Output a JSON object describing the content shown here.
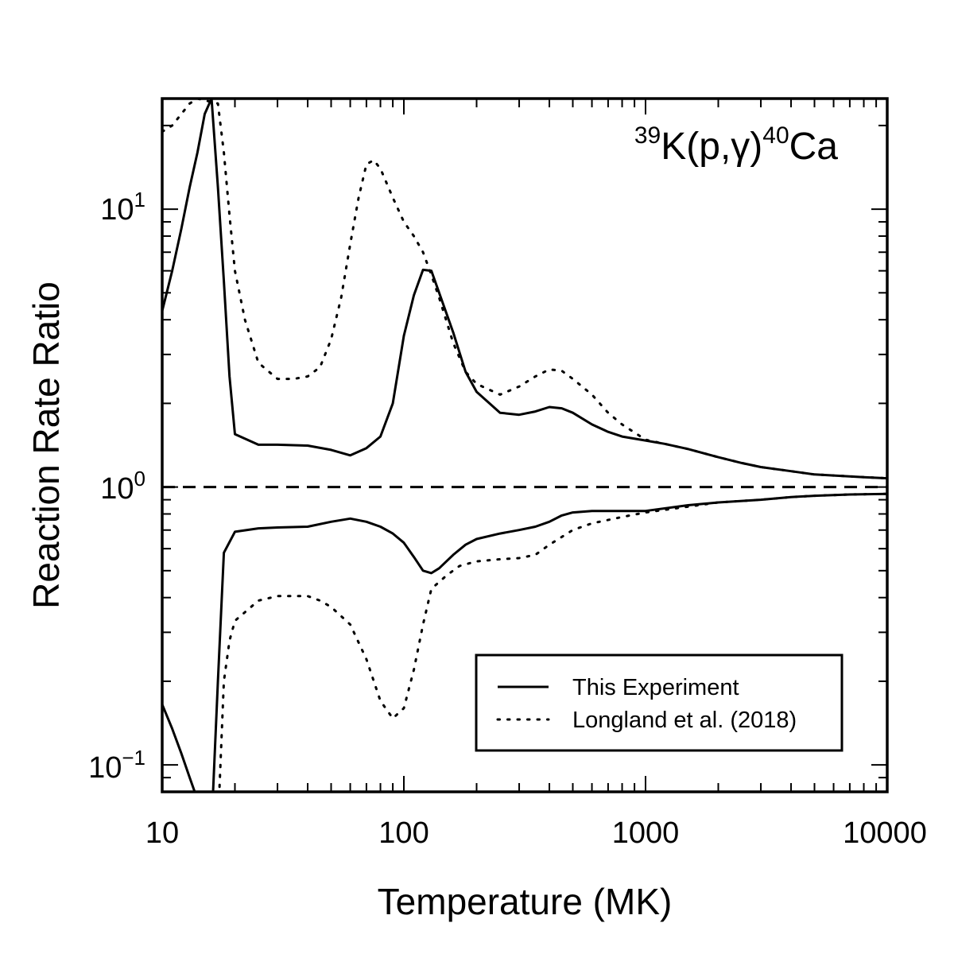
{
  "chart_data": {
    "type": "line",
    "title": "",
    "annotation": {
      "k_mass": "39",
      "k_rest": "K(p,",
      "gamma": "γ",
      "close": ")",
      "ca_mass": "40",
      "ca_rest": "Ca"
    },
    "xlabel": "Temperature (MK)",
    "ylabel": "Reaction Rate Ratio",
    "xscale": "log",
    "yscale": "log",
    "xlim": [
      10,
      10000
    ],
    "ylim": [
      0.08,
      25
    ],
    "x_tick_labels": [
      "10",
      "100",
      "1000",
      "10000"
    ],
    "y_tick_labels": [
      {
        "base": "10",
        "exp": "1"
      },
      {
        "base": "10",
        "exp": "0"
      },
      {
        "base": "10",
        "exp": "−1"
      }
    ],
    "reference_line": 1.0,
    "grid": false,
    "legend_position": "lower-right",
    "legend": [
      "This Experiment",
      "Longland et al. (2018)"
    ],
    "series": [
      {
        "name": "This Experiment",
        "style": "solid",
        "upper": [
          [
            10,
            4.3
          ],
          [
            11,
            6.0
          ],
          [
            12,
            8.5
          ],
          [
            13,
            12.0
          ],
          [
            14,
            16.0
          ],
          [
            15,
            22.0
          ],
          [
            16,
            25.0
          ],
          [
            17,
            12.0
          ],
          [
            18,
            5.5
          ],
          [
            19,
            2.5
          ],
          [
            20,
            1.55
          ],
          [
            25,
            1.42
          ],
          [
            30,
            1.42
          ],
          [
            40,
            1.41
          ],
          [
            50,
            1.36
          ],
          [
            60,
            1.3
          ],
          [
            70,
            1.38
          ],
          [
            80,
            1.52
          ],
          [
            90,
            2.0
          ],
          [
            100,
            3.5
          ],
          [
            110,
            4.9
          ],
          [
            120,
            6.05
          ],
          [
            130,
            6.0
          ],
          [
            140,
            5.0
          ],
          [
            160,
            3.6
          ],
          [
            180,
            2.6
          ],
          [
            200,
            2.2
          ],
          [
            250,
            1.85
          ],
          [
            300,
            1.82
          ],
          [
            350,
            1.87
          ],
          [
            400,
            1.94
          ],
          [
            450,
            1.92
          ],
          [
            500,
            1.85
          ],
          [
            600,
            1.68
          ],
          [
            700,
            1.58
          ],
          [
            800,
            1.52
          ],
          [
            1000,
            1.47
          ],
          [
            1200,
            1.43
          ],
          [
            1500,
            1.37
          ],
          [
            2000,
            1.28
          ],
          [
            2500,
            1.22
          ],
          [
            3000,
            1.18
          ],
          [
            4000,
            1.14
          ],
          [
            5000,
            1.11
          ],
          [
            6000,
            1.1
          ],
          [
            8000,
            1.085
          ],
          [
            10000,
            1.075
          ]
        ],
        "lower": [
          [
            10,
            0.165
          ],
          [
            11,
            0.135
          ],
          [
            12,
            0.11
          ],
          [
            13,
            0.09
          ],
          [
            14,
            0.075
          ],
          [
            15,
            0.065
          ],
          [
            16,
            0.06
          ],
          [
            17,
            0.2
          ],
          [
            18,
            0.58
          ],
          [
            20,
            0.69
          ],
          [
            25,
            0.71
          ],
          [
            30,
            0.715
          ],
          [
            40,
            0.72
          ],
          [
            50,
            0.75
          ],
          [
            60,
            0.77
          ],
          [
            70,
            0.75
          ],
          [
            80,
            0.72
          ],
          [
            90,
            0.68
          ],
          [
            100,
            0.63
          ],
          [
            110,
            0.56
          ],
          [
            120,
            0.5
          ],
          [
            130,
            0.49
          ],
          [
            140,
            0.51
          ],
          [
            160,
            0.57
          ],
          [
            180,
            0.62
          ],
          [
            200,
            0.65
          ],
          [
            250,
            0.68
          ],
          [
            300,
            0.7
          ],
          [
            350,
            0.72
          ],
          [
            400,
            0.75
          ],
          [
            450,
            0.79
          ],
          [
            500,
            0.81
          ],
          [
            600,
            0.82
          ],
          [
            800,
            0.82
          ],
          [
            1000,
            0.82
          ],
          [
            1500,
            0.86
          ],
          [
            2000,
            0.88
          ],
          [
            3000,
            0.9
          ],
          [
            4000,
            0.92
          ],
          [
            5000,
            0.93
          ],
          [
            7000,
            0.94
          ],
          [
            10000,
            0.945
          ]
        ]
      },
      {
        "name": "Longland et al. (2018)",
        "style": "dotted",
        "upper": [
          [
            10,
            19.0
          ],
          [
            11,
            20.0
          ],
          [
            12,
            22.0
          ],
          [
            13,
            24.0
          ],
          [
            14,
            25.0
          ],
          [
            17,
            24.0
          ],
          [
            18,
            16.0
          ],
          [
            19,
            9.5
          ],
          [
            20,
            6.0
          ],
          [
            22,
            4.0
          ],
          [
            25,
            2.8
          ],
          [
            30,
            2.45
          ],
          [
            35,
            2.45
          ],
          [
            40,
            2.5
          ],
          [
            45,
            2.7
          ],
          [
            50,
            3.4
          ],
          [
            55,
            4.8
          ],
          [
            60,
            7.5
          ],
          [
            65,
            11.0
          ],
          [
            70,
            14.5
          ],
          [
            75,
            15.0
          ],
          [
            80,
            14.0
          ],
          [
            90,
            11.0
          ],
          [
            100,
            9.0
          ],
          [
            110,
            8.0
          ],
          [
            120,
            7.0
          ],
          [
            130,
            5.8
          ],
          [
            140,
            4.8
          ],
          [
            160,
            3.3
          ],
          [
            180,
            2.6
          ],
          [
            200,
            2.35
          ],
          [
            250,
            2.15
          ],
          [
            300,
            2.3
          ],
          [
            350,
            2.5
          ],
          [
            400,
            2.65
          ],
          [
            450,
            2.62
          ],
          [
            500,
            2.45
          ],
          [
            600,
            2.15
          ],
          [
            700,
            1.85
          ],
          [
            800,
            1.68
          ],
          [
            1000,
            1.48
          ],
          [
            1200,
            1.43
          ],
          [
            1500,
            1.37
          ],
          [
            2000,
            1.28
          ],
          [
            2500,
            1.22
          ],
          [
            3000,
            1.18
          ],
          [
            4000,
            1.14
          ],
          [
            5000,
            1.11
          ],
          [
            6000,
            1.1
          ],
          [
            8000,
            1.085
          ],
          [
            10000,
            1.075
          ]
        ],
        "lower": [
          [
            17,
            0.06
          ],
          [
            18,
            0.2
          ],
          [
            19,
            0.28
          ],
          [
            20,
            0.33
          ],
          [
            25,
            0.39
          ],
          [
            30,
            0.405
          ],
          [
            40,
            0.405
          ],
          [
            45,
            0.39
          ],
          [
            50,
            0.37
          ],
          [
            60,
            0.32
          ],
          [
            70,
            0.24
          ],
          [
            80,
            0.17
          ],
          [
            90,
            0.147
          ],
          [
            100,
            0.16
          ],
          [
            110,
            0.22
          ],
          [
            120,
            0.32
          ],
          [
            130,
            0.43
          ],
          [
            150,
            0.48
          ],
          [
            170,
            0.52
          ],
          [
            200,
            0.54
          ],
          [
            250,
            0.55
          ],
          [
            300,
            0.555
          ],
          [
            350,
            0.57
          ],
          [
            400,
            0.62
          ],
          [
            500,
            0.7
          ],
          [
            600,
            0.74
          ],
          [
            800,
            0.78
          ],
          [
            1000,
            0.81
          ],
          [
            1500,
            0.85
          ],
          [
            2000,
            0.88
          ],
          [
            3000,
            0.9
          ],
          [
            4000,
            0.92
          ],
          [
            5000,
            0.93
          ],
          [
            7000,
            0.94
          ],
          [
            10000,
            0.945
          ]
        ]
      }
    ]
  }
}
